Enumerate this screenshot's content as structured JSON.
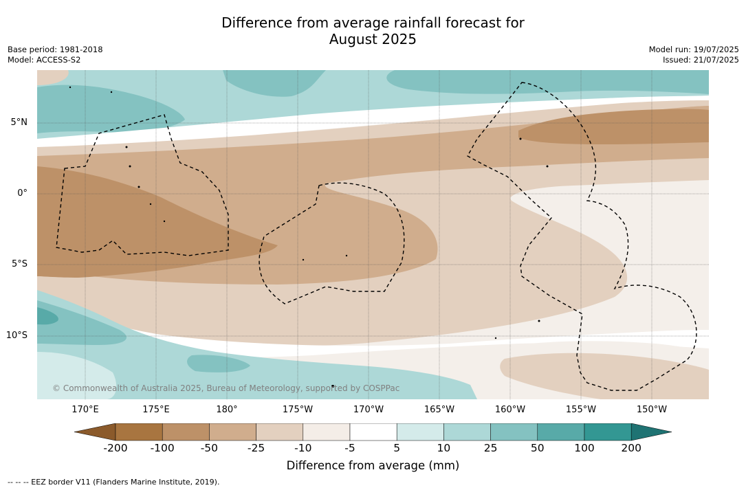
{
  "title": {
    "line1": "Difference from average rainfall forecast for",
    "line2": "August 2025"
  },
  "meta": {
    "base_period": "Base period: 1981-2018",
    "model": "Model: ACCESS-S2",
    "model_run": "Model run: 19/07/2025",
    "issued": "Issued: 21/07/2025"
  },
  "map": {
    "lat_labels": [
      "5°N",
      "0°",
      "5°S",
      "10°S"
    ],
    "lon_labels": [
      "170°E",
      "175°E",
      "180°",
      "175°W",
      "170°W",
      "165°W",
      "160°W",
      "155°W",
      "150°W"
    ],
    "copyright": "© Commonwealth of Australia 2025, Bureau of Meteorology, supported by COSPPac",
    "eez_note": "-- -- -- EEZ border V11 (Flanders Marine Institute, 2019)."
  },
  "legend": {
    "label": "Difference from average (mm)",
    "ticks": [
      "-200",
      "-100",
      "-50",
      "-25",
      "-10",
      "-5",
      "5",
      "10",
      "25",
      "50",
      "100",
      "200"
    ],
    "colors": [
      "#a87540",
      "#bd9168",
      "#d0ad8d",
      "#e3d0bf",
      "#f4ede7",
      "#ffffff",
      "#d4ebea",
      "#add8d7",
      "#84c2c1",
      "#58aaa8",
      "#339793"
    ],
    "under_color": "#8b5a2b",
    "over_color": "#1f7373"
  }
}
